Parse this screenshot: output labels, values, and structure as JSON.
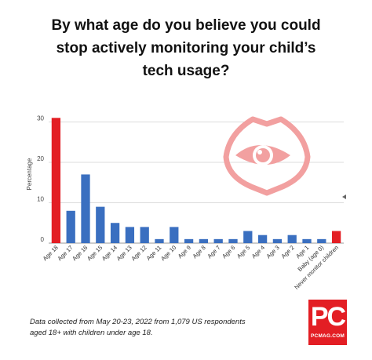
{
  "title_lines": [
    "By what age do you believe you could",
    "stop actively monitoring your child’s",
    "tech usage?"
  ],
  "footnote_lines": [
    "Data collected from May 20-23, 2022 from 1,079 US respondents",
    "aged 18+ with children under age 18."
  ],
  "logo": {
    "mark": "PC",
    "sub": "PCMAG.COM"
  },
  "colors": {
    "highlight": "#e31e24",
    "bar": "#3a6fc0",
    "icon": "#f2a0a0",
    "grid": "#dcdcdc"
  },
  "icon": "shield-eye-icon",
  "chart_data": {
    "type": "bar",
    "title": "",
    "xlabel": "",
    "ylabel": "Percentage",
    "ylim": [
      0,
      33
    ],
    "yticks": [
      0,
      10,
      20,
      30
    ],
    "grid": true,
    "categories": [
      "Age 18",
      "Age 17",
      "Age 16",
      "Age 15",
      "Age 14",
      "Age 13",
      "Age 12",
      "Age 11",
      "Age 10",
      "Age 9",
      "Age 8",
      "Age 7",
      "Age 6",
      "Age 5",
      "Age 4",
      "Age 3",
      "Age 2",
      "Age 1",
      "Baby (age 0)",
      "Never monitor children"
    ],
    "values": [
      31,
      8,
      17,
      9,
      5,
      4,
      4,
      1,
      4,
      1,
      1,
      1,
      1,
      3,
      2,
      1,
      2,
      1,
      1,
      3
    ],
    "highlight": [
      0,
      19
    ]
  }
}
